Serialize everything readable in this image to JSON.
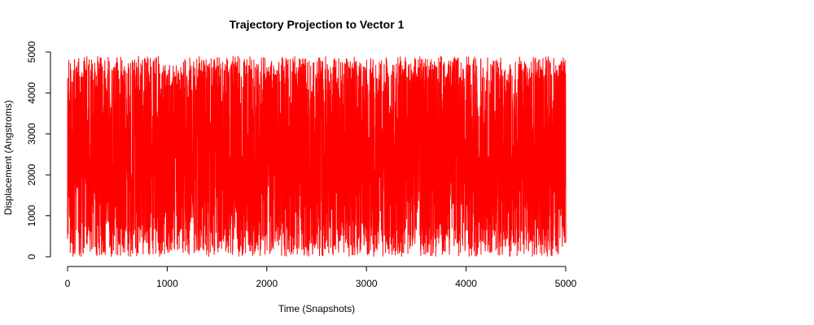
{
  "chart_data": {
    "type": "line",
    "title": "Trajectory Projection to Vector 1",
    "xlabel": "Time (Snapshots)",
    "ylabel": "Displacement (Angstroms)",
    "xlim": [
      0,
      5000
    ],
    "ylim": [
      0,
      5000
    ],
    "x_ticks": [
      0,
      1000,
      2000,
      3000,
      4000,
      5000
    ],
    "y_ticks": [
      0,
      1000,
      2000,
      3000,
      4000,
      5000
    ],
    "grid": false,
    "legend": "none",
    "series": [
      {
        "color": "#ff0000",
        "x_range": [
          0,
          5000
        ],
        "value_range": [
          0,
          4900
        ],
        "points": 5000
      }
    ]
  }
}
